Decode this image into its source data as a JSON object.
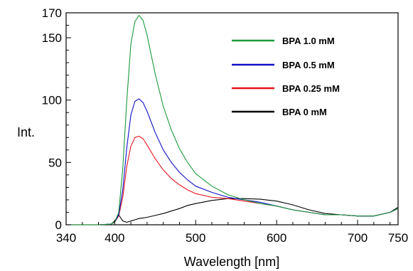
{
  "chart_data": {
    "type": "line",
    "xlabel": "Wavelength [nm]",
    "ylabel": "Int.",
    "xlim": [
      340,
      750
    ],
    "ylim": [
      0,
      170
    ],
    "x_ticks": [
      340,
      400,
      500,
      600,
      700,
      750
    ],
    "y_ticks": [
      0,
      50,
      100,
      150,
      170
    ],
    "grid": false,
    "legend_position": "top-right",
    "x": [
      340,
      380,
      395,
      400,
      405,
      410,
      415,
      420,
      425,
      430,
      435,
      440,
      450,
      460,
      470,
      480,
      490,
      500,
      520,
      540,
      560,
      580,
      600,
      620,
      640,
      660,
      680,
      700,
      720,
      740,
      750
    ],
    "series": [
      {
        "name": "BPA 1.0 mM",
        "color": "#1a9a3a",
        "values": [
          0,
          0,
          0.5,
          2,
          10,
          45,
          100,
          145,
          163,
          168,
          164,
          152,
          121,
          95,
          76,
          61,
          50,
          41,
          31,
          24,
          20,
          17,
          15,
          12,
          10,
          8,
          8,
          7,
          7,
          10,
          13
        ]
      },
      {
        "name": "BPA 0.5 mM",
        "color": "#1010c8",
        "values": [
          0,
          0,
          0.5,
          2,
          8,
          28,
          62,
          88,
          99,
          101,
          98,
          91,
          74,
          60,
          50,
          42,
          36,
          31,
          26,
          22,
          20,
          18,
          15,
          12,
          10,
          8,
          8,
          7,
          7,
          10,
          13
        ]
      },
      {
        "name": "BPA 0.25 mM",
        "color": "#e8141e",
        "values": [
          0,
          0,
          0.5,
          2,
          7,
          22,
          47,
          63,
          70,
          71,
          69,
          64,
          53,
          44,
          37,
          32,
          28,
          25,
          22,
          21,
          19,
          17,
          15,
          12,
          10,
          8,
          8,
          7,
          7,
          10,
          13
        ]
      },
      {
        "name": "BPA 0 mM",
        "color": "#000000",
        "values": [
          0,
          0,
          0,
          3,
          8,
          3,
          2,
          3,
          4,
          5,
          5.5,
          6,
          7.5,
          9,
          11,
          13,
          15.5,
          17,
          19.5,
          21,
          21,
          20.5,
          19,
          16,
          12,
          9,
          8,
          7,
          7,
          10,
          14
        ]
      }
    ]
  }
}
